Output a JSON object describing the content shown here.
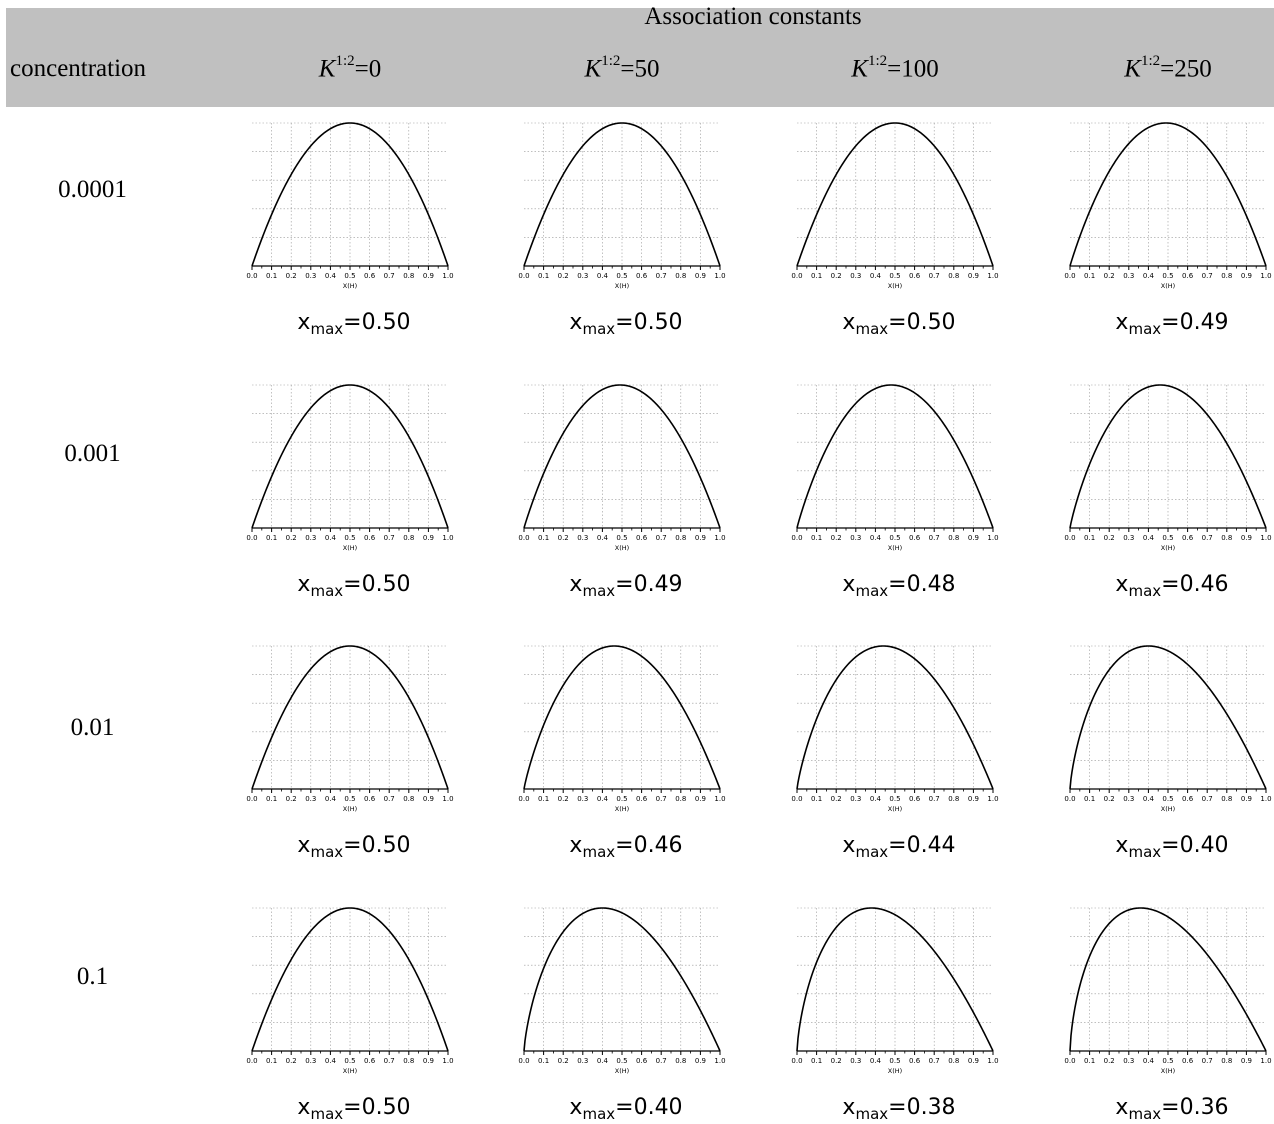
{
  "header": {
    "group_title": "Association constants",
    "concentration_label": "concentration",
    "k_symbol": "K",
    "k_superscript": "1:2",
    "columns": [
      "=0",
      "=50",
      "=100",
      "=250"
    ]
  },
  "rows": [
    "0.0001",
    "0.001",
    "0.01",
    "0.1"
  ],
  "xmax_label": {
    "symbol": "x",
    "subscript": "max"
  },
  "colors": {
    "header_bg": "#c0c0c0",
    "curve": "#000000",
    "grid": "#999999"
  },
  "chart_data": {
    "type": "line",
    "xlabel": "X(H)",
    "xlim": [
      0,
      1
    ],
    "ylim": [
      0,
      1
    ],
    "x_ticks": [
      "0.0",
      "0.1",
      "0.2",
      "0.3",
      "0.4",
      "0.5",
      "0.6",
      "0.7",
      "0.8",
      "0.9",
      "1.0"
    ],
    "grid": true,
    "xmax": [
      [
        0.5,
        0.5,
        0.5,
        0.49
      ],
      [
        0.5,
        0.49,
        0.48,
        0.46
      ],
      [
        0.5,
        0.46,
        0.44,
        0.4
      ],
      [
        0.5,
        0.4,
        0.38,
        0.36
      ]
    ],
    "xmax_text": [
      [
        "=0.50",
        "=0.50",
        "=0.50",
        "=0.49"
      ],
      [
        "=0.50",
        "=0.49",
        "=0.48",
        "=0.46"
      ],
      [
        "=0.50",
        "=0.46",
        "=0.44",
        "=0.40"
      ],
      [
        "=0.50",
        "=0.40",
        "=0.38",
        "=0.36"
      ]
    ]
  }
}
